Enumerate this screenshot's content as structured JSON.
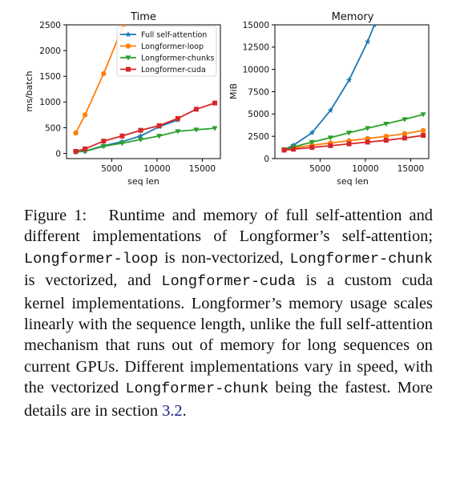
{
  "chart_data": [
    {
      "type": "line",
      "title": "Time",
      "xlabel": "seq len",
      "ylabel": "ms/batch",
      "xlim": [
        0,
        17000
      ],
      "ylim": [
        -100,
        2500
      ],
      "xticks": [
        5000,
        10000,
        15000
      ],
      "xtick_labels": [
        "5000",
        "10000",
        "15000"
      ],
      "yticks": [
        0,
        500,
        1000,
        1500,
        2000,
        2500
      ],
      "ytick_labels": [
        "0",
        "500",
        "1000",
        "1500",
        "2000",
        "2500"
      ],
      "legend": "top-right",
      "series": [
        {
          "name": "Full self-attention",
          "color": "#1f77b4",
          "marker": "star",
          "points": [
            [
              1024,
              30
            ],
            [
              2048,
              45
            ],
            [
              4096,
              150
            ],
            [
              6144,
              230
            ],
            [
              8192,
              340
            ],
            [
              10240,
              520
            ],
            [
              12288,
              650
            ]
          ]
        },
        {
          "name": "Longformer-loop",
          "color": "#ff7f0e",
          "marker": "circle",
          "points": [
            [
              1024,
              400
            ],
            [
              2048,
              750
            ],
            [
              4096,
              1550
            ],
            [
              6300,
              2500
            ]
          ]
        },
        {
          "name": "Longformer-chunks",
          "color": "#2ca02c",
          "marker": "triangle-down",
          "points": [
            [
              1024,
              30
            ],
            [
              2048,
              40
            ],
            [
              4096,
              140
            ],
            [
              6144,
              200
            ],
            [
              8192,
              270
            ],
            [
              10240,
              340
            ],
            [
              12288,
              430
            ],
            [
              14336,
              460
            ],
            [
              16384,
              490
            ]
          ]
        },
        {
          "name": "Longformer-cuda",
          "color": "#d62728",
          "marker": "square",
          "points": [
            [
              1024,
              40
            ],
            [
              2048,
              90
            ],
            [
              4096,
              240
            ],
            [
              6144,
              340
            ],
            [
              8192,
              450
            ],
            [
              10240,
              540
            ],
            [
              12288,
              680
            ],
            [
              14336,
              860
            ],
            [
              16384,
              980
            ]
          ]
        }
      ]
    },
    {
      "type": "line",
      "title": "Memory",
      "xlabel": "seq len",
      "ylabel": "MiB",
      "xlim": [
        0,
        17000
      ],
      "ylim": [
        0,
        15000
      ],
      "xticks": [
        5000,
        10000,
        15000
      ],
      "xtick_labels": [
        "5000",
        "10000",
        "15000"
      ],
      "yticks": [
        0,
        2500,
        5000,
        7500,
        10000,
        12500,
        15000
      ],
      "ytick_labels": [
        "0",
        "2500",
        "5000",
        "7500",
        "10000",
        "12500",
        "15000"
      ],
      "series": [
        {
          "name": "Full self-attention",
          "color": "#1f77b4",
          "marker": "star",
          "points": [
            [
              1024,
              1000
            ],
            [
              2048,
              1500
            ],
            [
              4096,
              2900
            ],
            [
              6144,
              5400
            ],
            [
              8192,
              8800
            ],
            [
              10240,
              13100
            ],
            [
              11000,
              15000
            ]
          ]
        },
        {
          "name": "Longformer-loop",
          "color": "#ff7f0e",
          "marker": "circle",
          "points": [
            [
              1024,
              1000
            ],
            [
              2048,
              1200
            ],
            [
              4096,
              1500
            ],
            [
              6144,
              1750
            ],
            [
              8192,
              2000
            ],
            [
              10240,
              2250
            ],
            [
              12288,
              2500
            ],
            [
              14336,
              2800
            ],
            [
              16384,
              3150
            ]
          ]
        },
        {
          "name": "Longformer-chunks",
          "color": "#2ca02c",
          "marker": "triangle-down",
          "points": [
            [
              1024,
              1000
            ],
            [
              2048,
              1300
            ],
            [
              4096,
              1850
            ],
            [
              6144,
              2350
            ],
            [
              8192,
              2900
            ],
            [
              10240,
              3400
            ],
            [
              12288,
              3900
            ],
            [
              14336,
              4400
            ],
            [
              16384,
              4950
            ]
          ]
        },
        {
          "name": "Longformer-cuda",
          "color": "#d62728",
          "marker": "square",
          "points": [
            [
              1024,
              950
            ],
            [
              2048,
              1050
            ],
            [
              4096,
              1250
            ],
            [
              6144,
              1450
            ],
            [
              8192,
              1650
            ],
            [
              10240,
              1850
            ],
            [
              12288,
              2050
            ],
            [
              14336,
              2300
            ],
            [
              16384,
              2600
            ]
          ]
        }
      ]
    }
  ],
  "caption": {
    "label": "Figure 1:",
    "text_1": "Runtime and memory of full self-attention and different implementations of Longformer’s self-attention;",
    "code_loop": "Longformer-loop",
    "text_2": "is non-vectorized,",
    "code_chunk": "Longformer-chunk",
    "text_3": "is vectorized, and",
    "code_cuda": "Longformer-cuda",
    "text_4": "is a custom cuda kernel implementations. Longformer’s memory usage scales linearly with the sequence length, unlike the full self-attention mechanism that runs out of memory for long sequences on current GPUs. Different implementations vary in speed, with the vectorized",
    "code_chunk_2": "Longformer-chunk",
    "text_5": "being the fastest. More details are in section",
    "section_ref": "3.2",
    "end": "."
  }
}
